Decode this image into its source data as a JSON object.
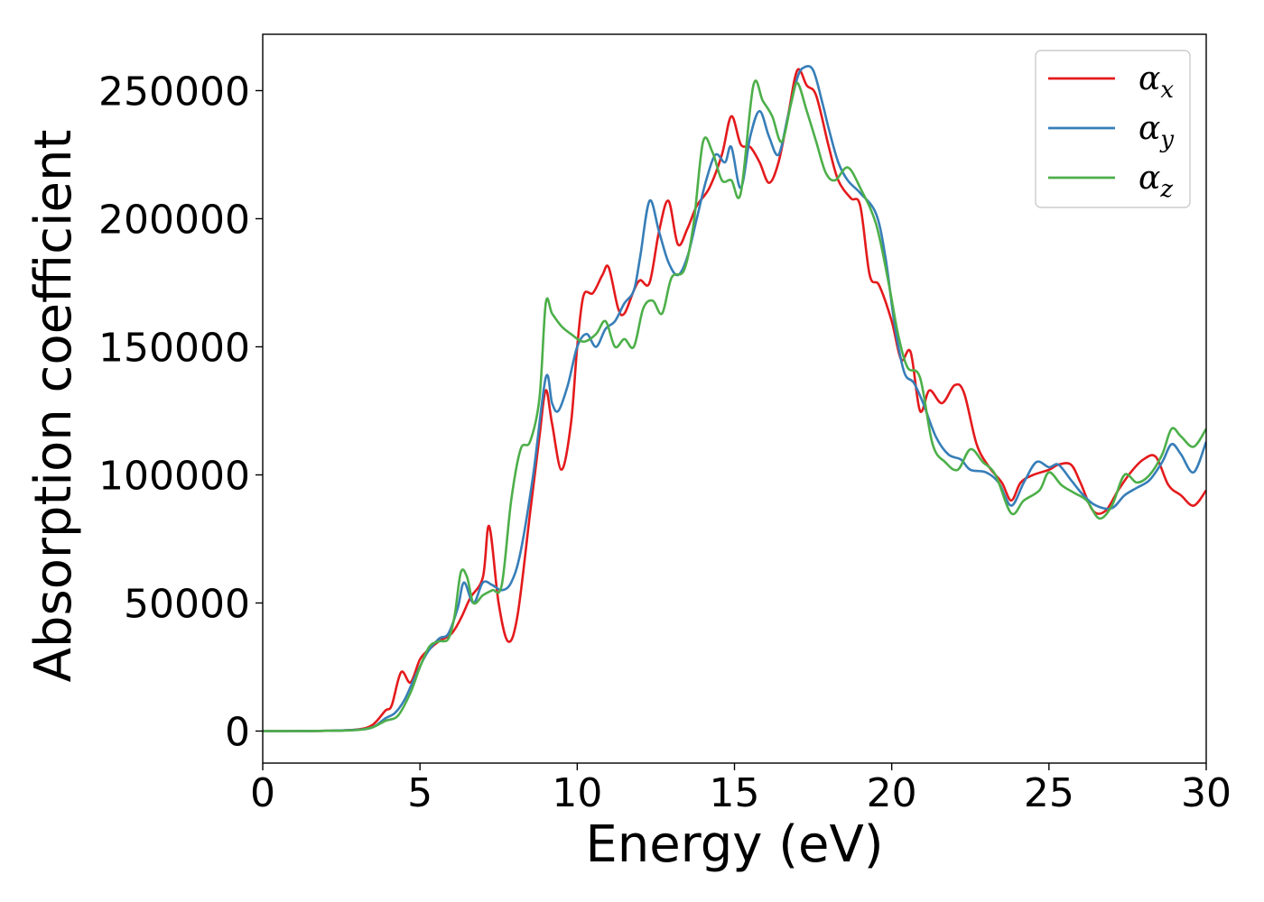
{
  "chart_data": {
    "type": "line",
    "xlabel": "Energy (eV)",
    "ylabel": "Absorption coefficient",
    "xlim": [
      0,
      30
    ],
    "ylim": [
      -12500,
      272000
    ],
    "x_ticks": [
      0,
      5,
      10,
      15,
      20,
      25,
      30
    ],
    "y_ticks": [
      0,
      50000,
      100000,
      150000,
      200000,
      250000
    ],
    "x_tick_labels": [
      "0",
      "5",
      "10",
      "15",
      "20",
      "25",
      "30"
    ],
    "y_tick_labels": [
      "0",
      "50000",
      "100000",
      "150000",
      "200000",
      "250000"
    ],
    "grid": false,
    "legend_position": "top-right",
    "series": [
      {
        "name": "αx",
        "legend_main": "α",
        "legend_sub": "x",
        "color": "#e41a1c",
        "points": [
          [
            0,
            0
          ],
          [
            1,
            0
          ],
          [
            2,
            100
          ],
          [
            3,
            600
          ],
          [
            3.5,
            2500
          ],
          [
            3.9,
            8000
          ],
          [
            4.1,
            10000
          ],
          [
            4.4,
            23000
          ],
          [
            4.7,
            19000
          ],
          [
            5.0,
            28000
          ],
          [
            5.3,
            32000
          ],
          [
            5.6,
            35000
          ],
          [
            6.0,
            38000
          ],
          [
            6.3,
            44000
          ],
          [
            6.6,
            52000
          ],
          [
            7.0,
            60000
          ],
          [
            7.2,
            80000
          ],
          [
            7.5,
            50000
          ],
          [
            7.8,
            35000
          ],
          [
            8.1,
            45000
          ],
          [
            8.5,
            85000
          ],
          [
            8.8,
            115000
          ],
          [
            9.0,
            133000
          ],
          [
            9.2,
            120000
          ],
          [
            9.5,
            102000
          ],
          [
            9.8,
            120000
          ],
          [
            10.0,
            150000
          ],
          [
            10.2,
            170000
          ],
          [
            10.5,
            171000
          ],
          [
            10.8,
            178000
          ],
          [
            11.0,
            181000
          ],
          [
            11.3,
            165000
          ],
          [
            11.5,
            163000
          ],
          [
            11.8,
            172000
          ],
          [
            12.0,
            176000
          ],
          [
            12.3,
            175000
          ],
          [
            12.6,
            195000
          ],
          [
            12.9,
            207000
          ],
          [
            13.2,
            190000
          ],
          [
            13.5,
            196000
          ],
          [
            13.8,
            205000
          ],
          [
            14.2,
            212000
          ],
          [
            14.6,
            225000
          ],
          [
            14.9,
            240000
          ],
          [
            15.2,
            229000
          ],
          [
            15.5,
            228000
          ],
          [
            15.8,
            222000
          ],
          [
            16.1,
            214000
          ],
          [
            16.4,
            222000
          ],
          [
            16.7,
            240000
          ],
          [
            17.0,
            258000
          ],
          [
            17.3,
            252000
          ],
          [
            17.6,
            248000
          ],
          [
            18.0,
            228000
          ],
          [
            18.3,
            215000
          ],
          [
            18.7,
            208000
          ],
          [
            19.0,
            205000
          ],
          [
            19.3,
            178000
          ],
          [
            19.6,
            174000
          ],
          [
            20.0,
            160000
          ],
          [
            20.3,
            145000
          ],
          [
            20.6,
            148000
          ],
          [
            20.9,
            125000
          ],
          [
            21.2,
            133000
          ],
          [
            21.6,
            128000
          ],
          [
            22.0,
            135000
          ],
          [
            22.3,
            132000
          ],
          [
            22.7,
            112000
          ],
          [
            23.1,
            103000
          ],
          [
            23.5,
            97000
          ],
          [
            23.8,
            90000
          ],
          [
            24.1,
            97000
          ],
          [
            24.5,
            100000
          ],
          [
            25.0,
            102000
          ],
          [
            25.3,
            104000
          ],
          [
            25.7,
            104000
          ],
          [
            26.0,
            97000
          ],
          [
            26.4,
            86000
          ],
          [
            26.8,
            86000
          ],
          [
            27.2,
            94000
          ],
          [
            27.6,
            101000
          ],
          [
            28.0,
            106000
          ],
          [
            28.4,
            107000
          ],
          [
            28.8,
            96000
          ],
          [
            29.2,
            92000
          ],
          [
            29.6,
            88000
          ],
          [
            30.0,
            94000
          ]
        ]
      },
      {
        "name": "αy",
        "legend_main": "α",
        "legend_sub": "y",
        "color": "#377eb8",
        "points": [
          [
            0,
            0
          ],
          [
            1,
            0
          ],
          [
            2,
            100
          ],
          [
            3,
            500
          ],
          [
            3.5,
            1500
          ],
          [
            3.9,
            5000
          ],
          [
            4.2,
            7000
          ],
          [
            4.5,
            12000
          ],
          [
            4.8,
            20000
          ],
          [
            5.2,
            30000
          ],
          [
            5.6,
            36000
          ],
          [
            5.9,
            38000
          ],
          [
            6.2,
            48000
          ],
          [
            6.4,
            58000
          ],
          [
            6.7,
            50000
          ],
          [
            7.0,
            58000
          ],
          [
            7.3,
            57000
          ],
          [
            7.6,
            55000
          ],
          [
            7.9,
            58000
          ],
          [
            8.2,
            70000
          ],
          [
            8.6,
            100000
          ],
          [
            9.0,
            138000
          ],
          [
            9.2,
            128000
          ],
          [
            9.4,
            125000
          ],
          [
            9.7,
            135000
          ],
          [
            10.0,
            150000
          ],
          [
            10.3,
            155000
          ],
          [
            10.6,
            150000
          ],
          [
            10.9,
            157000
          ],
          [
            11.2,
            160000
          ],
          [
            11.5,
            167000
          ],
          [
            11.8,
            172000
          ],
          [
            12.0,
            185000
          ],
          [
            12.3,
            207000
          ],
          [
            12.6,
            195000
          ],
          [
            12.9,
            183000
          ],
          [
            13.2,
            178000
          ],
          [
            13.5,
            185000
          ],
          [
            13.8,
            200000
          ],
          [
            14.1,
            215000
          ],
          [
            14.4,
            225000
          ],
          [
            14.7,
            222000
          ],
          [
            14.9,
            228000
          ],
          [
            15.2,
            212000
          ],
          [
            15.5,
            232000
          ],
          [
            15.8,
            242000
          ],
          [
            16.1,
            232000
          ],
          [
            16.4,
            225000
          ],
          [
            16.7,
            240000
          ],
          [
            17.0,
            255000
          ],
          [
            17.2,
            259000
          ],
          [
            17.5,
            258000
          ],
          [
            17.8,
            245000
          ],
          [
            18.0,
            235000
          ],
          [
            18.3,
            222000
          ],
          [
            18.6,
            215000
          ],
          [
            19.0,
            210000
          ],
          [
            19.5,
            202000
          ],
          [
            19.8,
            185000
          ],
          [
            20.1,
            158000
          ],
          [
            20.4,
            140000
          ],
          [
            20.7,
            136000
          ],
          [
            21.0,
            128000
          ],
          [
            21.4,
            115000
          ],
          [
            21.8,
            108000
          ],
          [
            22.2,
            106000
          ],
          [
            22.5,
            102000
          ],
          [
            23.0,
            101000
          ],
          [
            23.4,
            97000
          ],
          [
            23.8,
            88000
          ],
          [
            24.2,
            97000
          ],
          [
            24.6,
            105000
          ],
          [
            25.0,
            103000
          ],
          [
            25.3,
            104000
          ],
          [
            25.7,
            98000
          ],
          [
            26.1,
            92000
          ],
          [
            26.5,
            88000
          ],
          [
            27.0,
            87000
          ],
          [
            27.4,
            92000
          ],
          [
            27.8,
            95000
          ],
          [
            28.2,
            98000
          ],
          [
            28.6,
            105000
          ],
          [
            28.9,
            112000
          ],
          [
            29.2,
            108000
          ],
          [
            29.6,
            101000
          ],
          [
            30.0,
            113000
          ]
        ]
      },
      {
        "name": "αz",
        "legend_main": "α",
        "legend_sub": "z",
        "color": "#4daf4a",
        "points": [
          [
            0,
            0
          ],
          [
            1,
            0
          ],
          [
            2,
            100
          ],
          [
            3,
            400
          ],
          [
            3.5,
            1500
          ],
          [
            3.9,
            4000
          ],
          [
            4.3,
            6000
          ],
          [
            4.7,
            15000
          ],
          [
            5.0,
            25000
          ],
          [
            5.3,
            33000
          ],
          [
            5.6,
            35000
          ],
          [
            5.9,
            36000
          ],
          [
            6.1,
            45000
          ],
          [
            6.3,
            62000
          ],
          [
            6.5,
            60000
          ],
          [
            6.7,
            50000
          ],
          [
            7.0,
            53000
          ],
          [
            7.3,
            55000
          ],
          [
            7.6,
            57000
          ],
          [
            7.9,
            90000
          ],
          [
            8.2,
            110000
          ],
          [
            8.5,
            113000
          ],
          [
            8.8,
            130000
          ],
          [
            9.0,
            167000
          ],
          [
            9.2,
            163000
          ],
          [
            9.5,
            158000
          ],
          [
            9.8,
            155000
          ],
          [
            10.2,
            152000
          ],
          [
            10.6,
            155000
          ],
          [
            10.9,
            160000
          ],
          [
            11.2,
            150000
          ],
          [
            11.5,
            153000
          ],
          [
            11.8,
            150000
          ],
          [
            12.1,
            165000
          ],
          [
            12.4,
            168000
          ],
          [
            12.7,
            163000
          ],
          [
            13.0,
            177000
          ],
          [
            13.4,
            180000
          ],
          [
            13.7,
            198000
          ],
          [
            14.0,
            230000
          ],
          [
            14.3,
            226000
          ],
          [
            14.6,
            215000
          ],
          [
            14.9,
            215000
          ],
          [
            15.2,
            210000
          ],
          [
            15.6,
            252000
          ],
          [
            15.9,
            246000
          ],
          [
            16.2,
            240000
          ],
          [
            16.5,
            230000
          ],
          [
            16.8,
            245000
          ],
          [
            17.0,
            253000
          ],
          [
            17.3,
            242000
          ],
          [
            17.6,
            230000
          ],
          [
            17.9,
            218000
          ],
          [
            18.2,
            215000
          ],
          [
            18.6,
            220000
          ],
          [
            19.0,
            212000
          ],
          [
            19.5,
            198000
          ],
          [
            19.9,
            175000
          ],
          [
            20.2,
            155000
          ],
          [
            20.5,
            142000
          ],
          [
            20.9,
            138000
          ],
          [
            21.3,
            112000
          ],
          [
            21.7,
            105000
          ],
          [
            22.1,
            102000
          ],
          [
            22.5,
            110000
          ],
          [
            22.9,
            105000
          ],
          [
            23.3,
            100000
          ],
          [
            23.8,
            85000
          ],
          [
            24.2,
            90000
          ],
          [
            24.7,
            94000
          ],
          [
            25.0,
            101000
          ],
          [
            25.4,
            96000
          ],
          [
            25.8,
            93000
          ],
          [
            26.2,
            90000
          ],
          [
            26.6,
            83000
          ],
          [
            27.0,
            88000
          ],
          [
            27.4,
            100000
          ],
          [
            27.8,
            97000
          ],
          [
            28.2,
            100000
          ],
          [
            28.6,
            108000
          ],
          [
            28.9,
            118000
          ],
          [
            29.2,
            115000
          ],
          [
            29.6,
            111000
          ],
          [
            30.0,
            118000
          ]
        ]
      }
    ]
  }
}
